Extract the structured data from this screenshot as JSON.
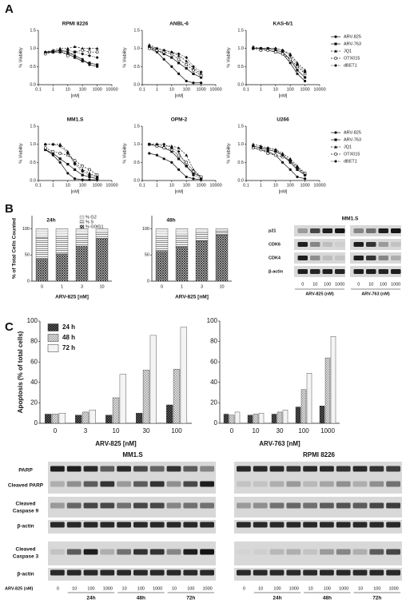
{
  "panel_labels": [
    "A",
    "B",
    "C"
  ],
  "chart_data": [
    {
      "type": "line",
      "title": "RPMI 8226",
      "xlabel": "[nM]",
      "ylabel": "% Viability",
      "xscale": "log",
      "x": [
        0.3,
        1,
        3,
        10,
        30,
        100,
        300,
        1000
      ],
      "xlim": [
        0.1,
        10000
      ],
      "xticks": [
        0.1,
        1,
        10,
        100,
        1000,
        10000
      ],
      "ylim": [
        0,
        1.5
      ],
      "yticks": [
        {
          "value": 0,
          "label": "0.0"
        },
        {
          "value": 0.5,
          "label": "0.5"
        },
        {
          "value": 1,
          "label": "1.0"
        },
        {
          "value": 1.5,
          "label": "1.5"
        }
      ],
      "series": [
        {
          "color": "#111",
          "marker": "circle",
          "line_style": "solid",
          "values": [
            0.9,
            0.92,
            0.95,
            0.9,
            0.8,
            0.7,
            0.55,
            0.5
          ]
        },
        {
          "color": "#111",
          "marker": "square",
          "line_style": "solid",
          "values": [
            0.88,
            0.9,
            0.9,
            0.85,
            0.75,
            0.65,
            0.6,
            0.55
          ]
        },
        {
          "color": "#111",
          "marker": "triangle",
          "line_style": "dashed",
          "values": [
            0.9,
            0.95,
            1.0,
            1.0,
            1.05,
            1.0,
            1.0,
            1.0
          ]
        },
        {
          "color": "#111",
          "marker": "open-circle",
          "line_style": "dashed",
          "values": [
            0.85,
            0.9,
            0.95,
            0.8,
            0.9,
            0.95,
            0.9,
            0.9
          ]
        },
        {
          "color": "#111",
          "marker": "diamond",
          "line_style": "dotted",
          "values": [
            0.9,
            0.9,
            0.95,
            0.95,
            0.9,
            0.85,
            0.8,
            0.75
          ]
        }
      ]
    },
    {
      "type": "line",
      "title": "ANBL-6",
      "xlabel": "[nM]",
      "ylabel": "% Viability",
      "xscale": "log",
      "x": [
        0.3,
        1,
        3,
        10,
        30,
        100,
        300,
        1000
      ],
      "xlim": [
        0.1,
        10000
      ],
      "xticks": [
        0.1,
        1,
        10,
        100,
        1000,
        10000
      ],
      "ylim": [
        0,
        1.5
      ],
      "yticks": [
        {
          "value": 0,
          "label": "0.0"
        },
        {
          "value": 0.5,
          "label": "0.5"
        },
        {
          "value": 1,
          "label": "1.0"
        },
        {
          "value": 1.5,
          "label": "1.5"
        }
      ],
      "series": [
        {
          "color": "#111",
          "marker": "circle",
          "line_style": "solid",
          "values": [
            1.0,
            0.9,
            0.7,
            0.5,
            0.3,
            0.1,
            0.05,
            0.05
          ]
        },
        {
          "color": "#111",
          "marker": "square",
          "line_style": "solid",
          "values": [
            1.05,
            0.95,
            0.85,
            0.75,
            0.6,
            0.45,
            0.3,
            0.2
          ]
        },
        {
          "color": "#111",
          "marker": "triangle",
          "line_style": "dashed",
          "values": [
            1.1,
            1.0,
            0.95,
            0.9,
            0.8,
            0.65,
            0.45,
            0.3
          ]
        },
        {
          "color": "#111",
          "marker": "open-circle",
          "line_style": "dashed",
          "values": [
            1.0,
            0.95,
            0.9,
            0.85,
            0.7,
            0.55,
            0.4,
            0.25
          ]
        },
        {
          "color": "#111",
          "marker": "diamond",
          "line_style": "dotted",
          "values": [
            1.05,
            1.0,
            0.95,
            0.9,
            0.85,
            0.75,
            0.5,
            0.35
          ]
        }
      ]
    },
    {
      "type": "line",
      "title": "KAS-6/1",
      "xlabel": "[nM]",
      "ylabel": "% Viability",
      "xscale": "log",
      "x": [
        0.3,
        1,
        3,
        10,
        30,
        100,
        300,
        1000
      ],
      "xlim": [
        0.1,
        10000
      ],
      "xticks": [
        0.1,
        1,
        10,
        100,
        1000,
        10000
      ],
      "ylim": [
        0,
        1.5
      ],
      "yticks": [
        {
          "value": 0,
          "label": "0.0"
        },
        {
          "value": 0.5,
          "label": "0.5"
        },
        {
          "value": 1,
          "label": "1.0"
        },
        {
          "value": 1.5,
          "label": "1.5"
        }
      ],
      "legend": "right",
      "series": [
        {
          "name": "ARV-825",
          "color": "#111",
          "marker": "circle",
          "line_style": "solid",
          "values": [
            1.0,
            1.0,
            0.95,
            0.9,
            0.85,
            0.6,
            0.3,
            0.1
          ]
        },
        {
          "name": "ARV-763",
          "color": "#111",
          "marker": "square",
          "line_style": "solid",
          "values": [
            1.0,
            1.0,
            1.0,
            0.95,
            0.9,
            0.7,
            0.4,
            0.2
          ]
        },
        {
          "name": "JQ1",
          "color": "#111",
          "marker": "triangle",
          "line_style": "dashed",
          "values": [
            1.05,
            1.0,
            1.0,
            1.0,
            0.95,
            0.85,
            0.6,
            0.4
          ]
        },
        {
          "name": "OTX015",
          "color": "#111",
          "marker": "open-circle",
          "line_style": "dashed",
          "values": [
            1.0,
            0.95,
            0.95,
            0.9,
            0.85,
            0.7,
            0.5,
            0.3
          ]
        },
        {
          "name": "dBET1",
          "color": "#111",
          "marker": "diamond",
          "line_style": "dotted",
          "values": [
            1.0,
            1.0,
            1.0,
            1.0,
            0.95,
            0.8,
            0.55,
            0.35
          ]
        }
      ]
    },
    {
      "type": "line",
      "title": "MM1.S",
      "xlabel": "[nM]",
      "ylabel": "% Viability",
      "xscale": "log",
      "x": [
        0.3,
        1,
        3,
        10,
        30,
        100,
        300,
        1000
      ],
      "xlim": [
        0.1,
        10000
      ],
      "xticks": [
        0.1,
        1,
        10,
        100,
        1000,
        10000
      ],
      "ylim": [
        0,
        1.5
      ],
      "yticks": [
        {
          "value": 0,
          "label": "0.0"
        },
        {
          "value": 0.5,
          "label": "0.5"
        },
        {
          "value": 1,
          "label": "1.0"
        },
        {
          "value": 1.5,
          "label": "1.5"
        }
      ],
      "series": [
        {
          "color": "#111",
          "marker": "circle",
          "line_style": "solid",
          "values": [
            0.85,
            0.7,
            0.5,
            0.2,
            0.05,
            0.02,
            0.02,
            0.02
          ]
        },
        {
          "color": "#111",
          "marker": "square",
          "line_style": "solid",
          "values": [
            0.85,
            0.75,
            0.6,
            0.45,
            0.3,
            0.15,
            0.1,
            0.05
          ]
        },
        {
          "color": "#111",
          "marker": "triangle",
          "line_style": "dashed",
          "values": [
            1.0,
            1.0,
            1.0,
            0.8,
            0.5,
            0.3,
            0.2,
            0.1
          ]
        },
        {
          "color": "#111",
          "marker": "open-circle",
          "line_style": "dashed",
          "values": [
            0.9,
            0.8,
            0.75,
            0.7,
            0.55,
            0.4,
            0.3,
            0.15
          ]
        },
        {
          "color": "#111",
          "marker": "diamond",
          "line_style": "dotted",
          "values": [
            1.0,
            1.0,
            0.95,
            0.75,
            0.45,
            0.25,
            0.15,
            0.1
          ]
        }
      ]
    },
    {
      "type": "line",
      "title": "OPM-2",
      "xlabel": "[nM]",
      "ylabel": "% Viability",
      "xscale": "log",
      "x": [
        0.3,
        1,
        3,
        10,
        30,
        100,
        300,
        1000
      ],
      "xlim": [
        0.1,
        10000
      ],
      "xticks": [
        0.1,
        1,
        10,
        100,
        1000,
        10000
      ],
      "ylim": [
        0,
        1.5
      ],
      "yticks": [
        {
          "value": 0,
          "label": "0.0"
        },
        {
          "value": 0.5,
          "label": "0.5"
        },
        {
          "value": 1,
          "label": "1.0"
        },
        {
          "value": 1.5,
          "label": "1.5"
        }
      ],
      "series": [
        {
          "color": "#111",
          "marker": "circle",
          "line_style": "solid",
          "values": [
            0.75,
            0.7,
            0.6,
            0.5,
            0.3,
            0.1,
            0.05,
            0.02
          ]
        },
        {
          "color": "#111",
          "marker": "square",
          "line_style": "solid",
          "values": [
            1.0,
            0.95,
            0.9,
            0.8,
            0.6,
            0.4,
            0.2,
            0.1
          ]
        },
        {
          "color": "#111",
          "marker": "triangle",
          "line_style": "dashed",
          "values": [
            1.0,
            1.0,
            0.95,
            0.95,
            0.9,
            0.7,
            0.3,
            0.1
          ]
        },
        {
          "color": "#111",
          "marker": "open-circle",
          "line_style": "dashed",
          "values": [
            1.0,
            0.95,
            0.9,
            0.85,
            0.7,
            0.5,
            0.25,
            0.1
          ]
        },
        {
          "color": "#111",
          "marker": "diamond",
          "line_style": "dotted",
          "values": [
            1.0,
            1.0,
            1.0,
            0.9,
            0.8,
            0.4,
            0.15,
            0.05
          ]
        }
      ]
    },
    {
      "type": "line",
      "title": "U266",
      "xlabel": "[nM]",
      "ylabel": "% Viability",
      "xscale": "log",
      "x": [
        0.3,
        1,
        3,
        10,
        30,
        100,
        300,
        1000
      ],
      "xlim": [
        0.1,
        10000
      ],
      "xticks": [
        0.1,
        1,
        10,
        100,
        1000,
        10000
      ],
      "ylim": [
        0,
        1.5
      ],
      "yticks": [
        {
          "value": 0,
          "label": "0.0"
        },
        {
          "value": 0.5,
          "label": "0.5"
        },
        {
          "value": 1,
          "label": "1.0"
        },
        {
          "value": 1.5,
          "label": "1.5"
        }
      ],
      "legend": "right",
      "series": [
        {
          "name": "ARV-825",
          "color": "#111",
          "marker": "circle",
          "line_style": "solid",
          "values": [
            0.9,
            0.85,
            0.8,
            0.7,
            0.5,
            0.3,
            0.1,
            0.05
          ]
        },
        {
          "name": "ARV-763",
          "color": "#111",
          "marker": "square",
          "line_style": "solid",
          "values": [
            0.95,
            0.9,
            0.85,
            0.8,
            0.7,
            0.5,
            0.3,
            0.15
          ]
        },
        {
          "name": "JQ1",
          "color": "#111",
          "marker": "triangle",
          "line_style": "dashed",
          "values": [
            1.0,
            0.95,
            0.9,
            0.85,
            0.75,
            0.6,
            0.4,
            0.2
          ]
        },
        {
          "name": "OTX015",
          "color": "#111",
          "marker": "open-circle",
          "line_style": "dashed",
          "values": [
            0.9,
            0.85,
            0.75,
            0.7,
            0.65,
            0.55,
            0.35,
            0.2
          ]
        },
        {
          "name": "dBET1",
          "color": "#111",
          "marker": "diamond",
          "line_style": "dotted",
          "values": [
            0.95,
            0.9,
            0.9,
            0.85,
            0.7,
            0.55,
            0.35,
            0.15
          ]
        }
      ]
    },
    {
      "type": "bar",
      "stacked": true,
      "title": "24h",
      "xlabel": "ARV-825 [nM]",
      "ylabel": "% of Total Cells Counted",
      "categories": [
        "0",
        "1",
        "3",
        "10"
      ],
      "ylim": [
        0,
        125
      ],
      "yticks": [
        0,
        50,
        100
      ],
      "legend": "upper right",
      "series": [
        {
          "name": "% G2",
          "pattern": "light",
          "values": [
            17,
            15,
            11,
            8
          ]
        },
        {
          "name": "% S",
          "pattern": "hlines",
          "values": [
            40,
            33,
            22,
            10
          ]
        },
        {
          "name": "% G0/G1",
          "pattern": "crosshatch",
          "values": [
            43,
            52,
            67,
            82
          ]
        }
      ]
    },
    {
      "type": "bar",
      "stacked": true,
      "title": "48h",
      "xlabel": "ARV-825 [nM]",
      "categories": [
        "0",
        "1",
        "3",
        "10"
      ],
      "ylim": [
        0,
        125
      ],
      "yticks": [
        0,
        50,
        100
      ],
      "series": [
        {
          "pattern": "light",
          "values": [
            15,
            12,
            8,
            5
          ]
        },
        {
          "pattern": "hlines",
          "values": [
            28,
            23,
            15,
            7
          ]
        },
        {
          "pattern": "crosshatch",
          "values": [
            57,
            65,
            77,
            88
          ]
        }
      ]
    },
    {
      "type": "bar",
      "stacked": false,
      "xlabel": "ARV-825 [nM]",
      "ylabel": "Apoptosis (% of total cells)",
      "categories": [
        "0",
        "3",
        "10",
        "30",
        "100"
      ],
      "ylim": [
        0,
        100
      ],
      "yticks": [
        0,
        20,
        40,
        60,
        80,
        100
      ],
      "legend": "upper left",
      "series": [
        {
          "name": "24 h",
          "pattern": "checker-dark",
          "values": [
            9,
            8,
            8,
            10,
            18
          ]
        },
        {
          "name": "48 h",
          "pattern": "checker-light",
          "values": [
            9,
            11,
            25,
            52,
            53
          ]
        },
        {
          "name": "72 h",
          "pattern": "plain",
          "values": [
            10,
            13,
            48,
            86,
            94
          ]
        }
      ]
    },
    {
      "type": "bar",
      "stacked": false,
      "xlabel": "ARV-763 [nM]",
      "categories": [
        "0",
        "10",
        "30",
        "100",
        "1000"
      ],
      "ylim": [
        0,
        100
      ],
      "yticks": [
        0,
        20,
        40,
        60,
        80,
        100
      ],
      "series": [
        {
          "pattern": "checker-dark",
          "values": [
            9,
            8,
            9,
            16,
            17
          ]
        },
        {
          "pattern": "checker-light",
          "values": [
            8,
            9,
            11,
            33,
            64
          ]
        },
        {
          "pattern": "plain",
          "values": [
            11,
            10,
            13,
            49,
            85
          ]
        }
      ]
    }
  ],
  "blot_b": {
    "title": "MM1.S",
    "rows": [
      "p21",
      "CDK6",
      "CDK4",
      "β-actin"
    ],
    "lanes": [
      "0",
      "10",
      "100",
      "1000"
    ],
    "groups": [
      "ARV-825 (nM)",
      "ARV-763 (nM)"
    ]
  },
  "blot_c": {
    "titles": [
      "MM1.S",
      "RPMI 8226"
    ],
    "rows": [
      [
        "PARP"
      ],
      [
        "Cleaved PARP"
      ],
      [
        "Cleaved",
        "Caspase 9"
      ],
      [
        "β-actin"
      ],
      [
        "Cleaved",
        "Caspase 3"
      ],
      [
        "β-actin"
      ]
    ],
    "treatment": "ARV-825 (nM)",
    "lanes": [
      "0",
      "10",
      "100",
      "1000",
      "10",
      "100",
      "1000",
      "10",
      "100",
      "1000"
    ],
    "times": [
      "24h",
      "48h",
      "72h"
    ]
  }
}
